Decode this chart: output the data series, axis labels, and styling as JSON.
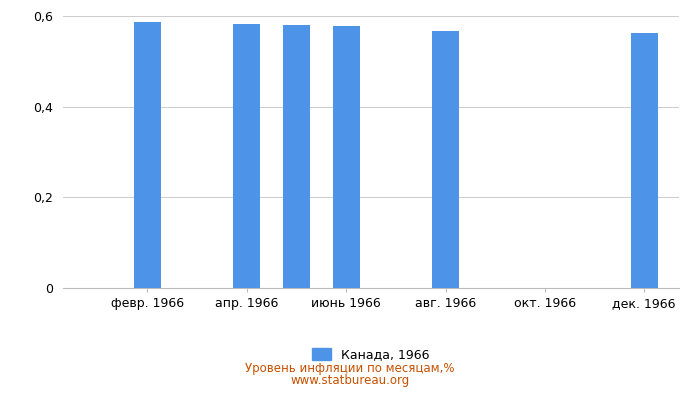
{
  "values": [
    null,
    0.587,
    null,
    0.583,
    0.58,
    0.577,
    null,
    0.567,
    null,
    null,
    null,
    0.563
  ],
  "bar_color": "#4d94e8",
  "ylim": [
    0,
    0.6
  ],
  "yticks": [
    0,
    0.2,
    0.4,
    0.6
  ],
  "legend_label": "Канада, 1966",
  "footer_line1": "Уровень инфляции по месяцам,%",
  "footer_line2": "www.statbureau.org",
  "background_color": "#ffffff",
  "tick_labels_shown": [
    "февр. 1966",
    "апр. 1966",
    "июнь 1966",
    "авг. 1966",
    "окт. 1966",
    "дек. 1966"
  ],
  "shown_indices": [
    1,
    3,
    5,
    7,
    9,
    11
  ],
  "bar_width": 0.55,
  "grid_color": "#cccccc",
  "spine_color": "#bbbbbb",
  "footer_color": "#c85000",
  "legend_fontsize": 9,
  "tick_fontsize": 9,
  "ytick_fontsize": 9
}
